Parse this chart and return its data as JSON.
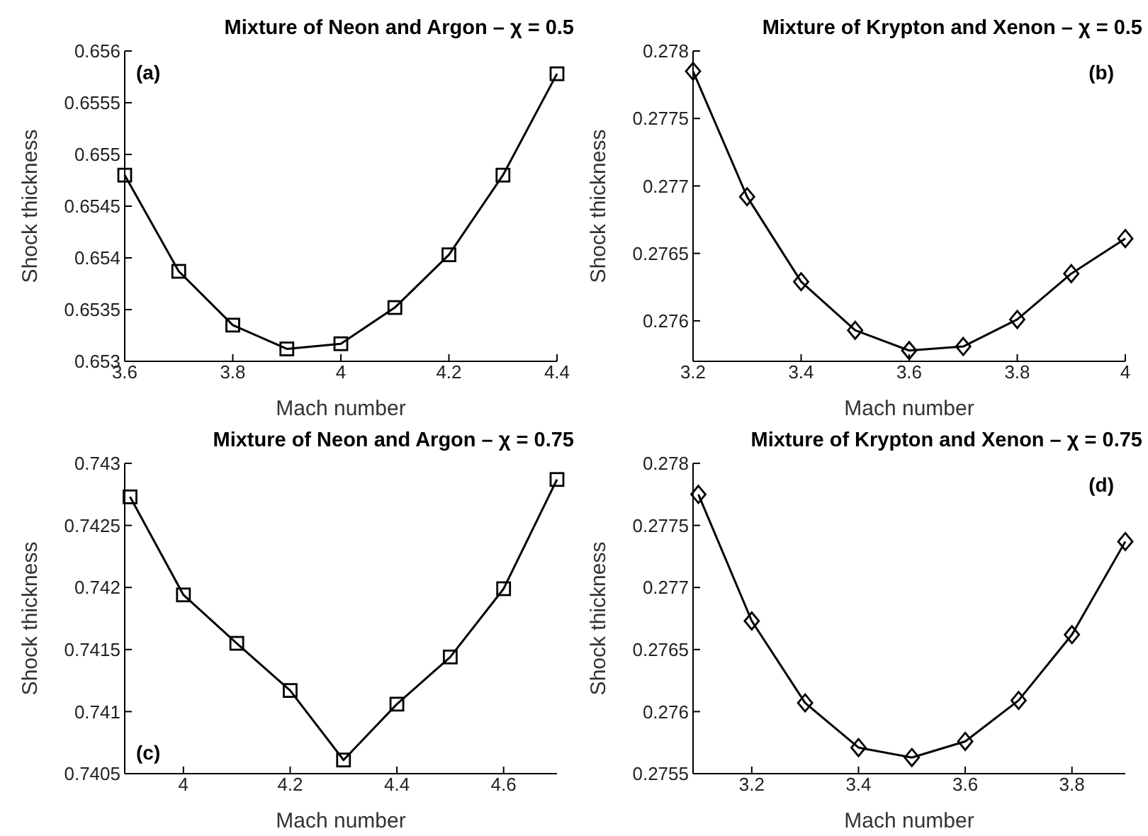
{
  "chart_data": [
    {
      "type": "line",
      "title": "Mixture of Neon and Argon – χ = 0.5",
      "xlabel": "Mach number",
      "ylabel": "Shock thickness",
      "annotations": [
        "(a)"
      ],
      "marker": "square",
      "line_style": "solid",
      "x": [
        3.6,
        3.7,
        3.8,
        3.9,
        4.0,
        4.1,
        4.2,
        4.3,
        4.4
      ],
      "xlim": [
        3.6,
        4.4
      ],
      "xticks": [
        3.6,
        3.8,
        4,
        4.2,
        4.4
      ],
      "ylim": [
        0.653,
        0.656
      ],
      "yticks": [
        0.653,
        0.6535,
        0.654,
        0.6545,
        0.655,
        0.6555,
        0.656
      ],
      "series": [
        {
          "color": "#000000",
          "values": [
            0.6548,
            0.65387,
            0.65335,
            0.65312,
            0.65317,
            0.65352,
            0.65403,
            0.6548,
            0.65578
          ]
        }
      ]
    },
    {
      "type": "line",
      "title": "Mixture of Krypton and Xenon – χ = 0.5",
      "xlabel": "Mach number",
      "ylabel": "Shock thickness",
      "annotations": [
        "(b)"
      ],
      "marker": "diamond",
      "line_style": "solid",
      "x": [
        3.2,
        3.3,
        3.4,
        3.5,
        3.6,
        3.7,
        3.8,
        3.9,
        4.0
      ],
      "xlim": [
        3.2,
        4
      ],
      "xticks": [
        3.2,
        3.4,
        3.6,
        3.8,
        4
      ],
      "ylim": [
        0.2757,
        0.278
      ],
      "yticks": [
        0.276,
        0.2765,
        0.277,
        0.2775,
        0.278
      ],
      "series": [
        {
          "color": "#000000",
          "values": [
            0.27785,
            0.27692,
            0.27629,
            0.27593,
            0.27578,
            0.27581,
            0.27601,
            0.27635,
            0.27661
          ]
        }
      ]
    },
    {
      "type": "line",
      "title": "Mixture of Neon and Argon – χ = 0.75",
      "xlabel": "Mach number",
      "ylabel": "Shock thickness",
      "annotations": [
        "(c)"
      ],
      "marker": "square",
      "line_style": "solid",
      "x": [
        3.9,
        4.0,
        4.1,
        4.2,
        4.3,
        4.4,
        4.5,
        4.6,
        4.7
      ],
      "xlim": [
        3.89,
        4.7
      ],
      "xticks": [
        4,
        4.2,
        4.4,
        4.6
      ],
      "ylim": [
        0.7405,
        0.743
      ],
      "yticks": [
        0.7405,
        0.741,
        0.7415,
        0.742,
        0.7425,
        0.743
      ],
      "series": [
        {
          "color": "#000000",
          "values": [
            0.74273,
            0.74194,
            0.74155,
            0.74117,
            0.74061,
            0.74106,
            0.74144,
            0.74199,
            0.74287
          ]
        }
      ]
    },
    {
      "type": "line",
      "title": "Mixture of Krypton and Xenon – χ = 0.75",
      "xlabel": "Mach number",
      "ylabel": "Shock thickness",
      "annotations": [
        "(d)"
      ],
      "marker": "diamond",
      "line_style": "solid",
      "x": [
        3.1,
        3.2,
        3.3,
        3.4,
        3.5,
        3.6,
        3.7,
        3.8,
        3.9
      ],
      "xlim": [
        3.09,
        3.9
      ],
      "xticks": [
        3.2,
        3.4,
        3.6,
        3.8
      ],
      "ylim": [
        0.2755,
        0.278
      ],
      "yticks": [
        0.2755,
        0.276,
        0.2765,
        0.277,
        0.2775,
        0.278
      ],
      "series": [
        {
          "color": "#000000",
          "values": [
            0.27775,
            0.27673,
            0.27607,
            0.27571,
            0.27563,
            0.27576,
            0.27609,
            0.27662,
            0.27737
          ]
        }
      ]
    }
  ]
}
